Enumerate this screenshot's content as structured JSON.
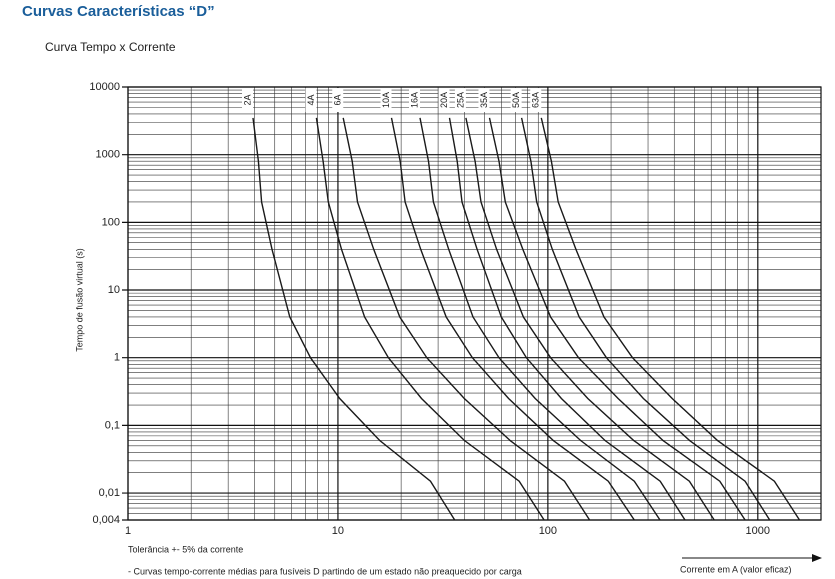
{
  "chart_data": {
    "type": "line",
    "title": "Curvas Características “D”",
    "subtitle": "Curva Tempo x Corrente",
    "y_label": "Tempo de fusão virtual (s)",
    "x_label": "Corrente em A (valor eficaz)",
    "notes": [
      "Tolerância +- 5% da corrente",
      "- Curvas tempo-corrente médias para fusíveis D partindo de um estado não preaquecido por carga"
    ],
    "xscale": "log",
    "yscale": "log",
    "grid": true,
    "minor_grid": true,
    "xlim": [
      1,
      2000
    ],
    "ylim": [
      0.004,
      10000
    ],
    "xticks": [
      1,
      10,
      100,
      1000
    ],
    "yticks": [
      10000,
      1000,
      100,
      10,
      1,
      {
        "value": 0.1,
        "label": "0,1"
      },
      {
        "value": 0.01,
        "label": "0,01"
      },
      {
        "value": 0.004,
        "label": "0,004"
      }
    ],
    "color": "#1a1a1a",
    "series": [
      {
        "name": "2A",
        "x": [
          3.94,
          4.18,
          4.33,
          4.85,
          5.9,
          7.4,
          10.2,
          15.8,
          27.6,
          36
        ],
        "values": [
          3500,
          800,
          200,
          40,
          4,
          1,
          0.25,
          0.06,
          0.015,
          0.004
        ]
      },
      {
        "name": "4A",
        "x": [
          7.9,
          8.5,
          9.0,
          10.4,
          13.4,
          17.4,
          25,
          40,
          73,
          96
        ],
        "values": [
          3500,
          800,
          200,
          40,
          4,
          1,
          0.25,
          0.06,
          0.015,
          0.004
        ]
      },
      {
        "name": "6A",
        "x": [
          10.6,
          11.7,
          12.4,
          14.8,
          19.7,
          26.5,
          40,
          66,
          120,
          158
        ],
        "values": [
          3500,
          800,
          200,
          40,
          4,
          1,
          0.25,
          0.06,
          0.015,
          0.004
        ]
      },
      {
        "name": "10A",
        "x": [
          18,
          19.8,
          20.9,
          24.8,
          32.8,
          43.7,
          65,
          106,
          194,
          258
        ],
        "values": [
          3500,
          800,
          200,
          40,
          4,
          1,
          0.25,
          0.06,
          0.015,
          0.004
        ]
      },
      {
        "name": "16A",
        "x": [
          24.6,
          27,
          28.5,
          33.7,
          44,
          58.5,
          87,
          143,
          258,
          342
        ],
        "values": [
          3500,
          800,
          200,
          40,
          4,
          1,
          0.25,
          0.06,
          0.015,
          0.004
        ]
      },
      {
        "name": "20A",
        "x": [
          34,
          37,
          39,
          46,
          60,
          79,
          116,
          187,
          343,
          450
        ],
        "values": [
          3500,
          800,
          200,
          40,
          4,
          1,
          0.25,
          0.06,
          0.015,
          0.004
        ]
      },
      {
        "name": "25A",
        "x": [
          40.7,
          45,
          48,
          57,
          76.5,
          103,
          155,
          256,
          472,
          620
        ],
        "values": [
          3500,
          800,
          200,
          40,
          4,
          1,
          0.25,
          0.06,
          0.015,
          0.004
        ]
      },
      {
        "name": "35A",
        "x": [
          52.7,
          58.5,
          62.7,
          76,
          103,
          140,
          216,
          353,
          659,
          870
        ],
        "values": [
          3500,
          800,
          200,
          40,
          4,
          1,
          0.25,
          0.06,
          0.015,
          0.004
        ]
      },
      {
        "name": "50A",
        "x": [
          75,
          83,
          88.5,
          105,
          141,
          190,
          285,
          473,
          870,
          1140
        ],
        "values": [
          3500,
          800,
          200,
          40,
          4,
          1,
          0.25,
          0.06,
          0.015,
          0.004
        ]
      },
      {
        "name": "63A",
        "x": [
          93,
          104,
          112,
          136,
          185,
          253,
          391,
          642,
          1200,
          1580
        ],
        "values": [
          3500,
          800,
          200,
          40,
          4,
          1,
          0.25,
          0.06,
          0.015,
          0.004
        ]
      }
    ]
  }
}
